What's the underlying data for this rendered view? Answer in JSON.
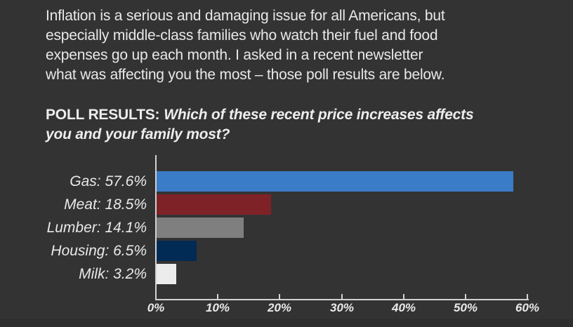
{
  "background": "#333333",
  "intro": {
    "lines": [
      "Inflation is a serious and damaging issue for all Americans, but",
      "especially middle-class families who watch their fuel and food",
      "expenses go up each month. I asked in a recent newsletter",
      "what was affecting you the most – those poll results are below."
    ]
  },
  "heading": {
    "label": "POLL RESULTS:",
    "question_line1": "Which of these recent price increases affects",
    "question_line2": "you and your family most?"
  },
  "chart_data": {
    "type": "bar",
    "orientation": "horizontal",
    "title": "POLL RESULTS: Which of these recent price increases affects you and your family most?",
    "categories": [
      "Gas",
      "Meat",
      "Lumber",
      "Housing",
      "Milk"
    ],
    "values": [
      57.6,
      18.5,
      14.1,
      6.5,
      3.2
    ],
    "bar_labels": [
      "Gas: 57.6%",
      "Meat: 18.5%",
      "Lumber: 14.1%",
      "Housing: 6.5%",
      "Milk: 3.2%"
    ],
    "bar_colors": [
      "#3a7cc8",
      "#7f2227",
      "#7f7f7f",
      "#012a54",
      "#ececec"
    ],
    "x_ticks": [
      "0%",
      "10%",
      "20%",
      "30%",
      "40%",
      "50%",
      "60%"
    ],
    "xlim": [
      0,
      60
    ],
    "xlabel": "",
    "ylabel": "",
    "grid": false,
    "legend": false,
    "axis_color": "#d2d2d2",
    "text_color": "#e9e9e9"
  }
}
